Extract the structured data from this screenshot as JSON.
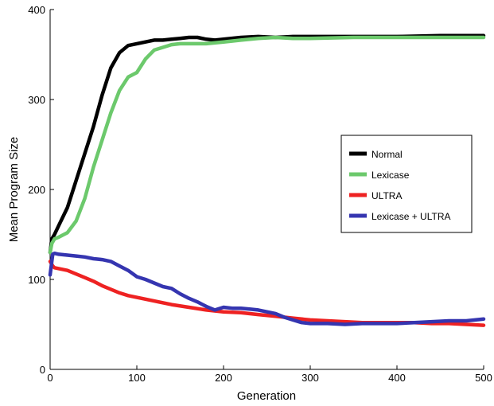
{
  "chart_data": {
    "type": "line",
    "xlabel": "Generation",
    "ylabel": "Mean Program Size",
    "xlim": [
      0,
      500
    ],
    "ylim": [
      0,
      400
    ],
    "xticks": [
      0,
      100,
      200,
      300,
      400,
      500
    ],
    "yticks": [
      0,
      100,
      200,
      300,
      400
    ],
    "grid": false,
    "legend_position": "right-middle",
    "series": [
      {
        "name": "Normal",
        "color": "#000000",
        "x": [
          0,
          2,
          5,
          10,
          20,
          30,
          40,
          50,
          60,
          70,
          80,
          90,
          100,
          110,
          120,
          130,
          140,
          150,
          160,
          170,
          180,
          190,
          200,
          220,
          240,
          260,
          280,
          300,
          350,
          400,
          450,
          500
        ],
        "y": [
          130,
          145,
          150,
          160,
          180,
          210,
          240,
          270,
          305,
          335,
          352,
          360,
          362,
          364,
          366,
          366,
          367,
          368,
          369,
          369,
          367,
          366,
          367,
          369,
          370,
          369,
          370,
          370,
          370,
          370,
          371,
          371
        ]
      },
      {
        "name": "Lexicase",
        "color": "#6cc96c",
        "x": [
          0,
          2,
          5,
          10,
          20,
          30,
          40,
          50,
          60,
          70,
          80,
          90,
          100,
          110,
          120,
          130,
          140,
          150,
          160,
          180,
          200,
          220,
          240,
          260,
          280,
          300,
          350,
          400,
          450,
          500
        ],
        "y": [
          130,
          140,
          145,
          147,
          152,
          165,
          190,
          225,
          255,
          285,
          310,
          325,
          330,
          345,
          355,
          358,
          361,
          362,
          362,
          362,
          364,
          366,
          368,
          369,
          368,
          368,
          369,
          369,
          369,
          369
        ]
      },
      {
        "name": "ULTRA",
        "color": "#ee2222",
        "x": [
          0,
          3,
          5,
          10,
          20,
          30,
          40,
          50,
          60,
          70,
          80,
          90,
          100,
          120,
          140,
          160,
          180,
          200,
          220,
          240,
          260,
          280,
          300,
          320,
          340,
          360,
          380,
          400,
          420,
          440,
          460,
          480,
          500
        ],
        "y": [
          120,
          115,
          113,
          112,
          110,
          106,
          102,
          98,
          93,
          89,
          85,
          82,
          80,
          76,
          72,
          69,
          66,
          64,
          63,
          61,
          59,
          57,
          55,
          54,
          53,
          52,
          52,
          52,
          52,
          51,
          51,
          50,
          49
        ]
      },
      {
        "name": "Lexicase + ULTRA",
        "color": "#3535b0",
        "x": [
          0,
          3,
          5,
          10,
          20,
          30,
          40,
          50,
          60,
          70,
          80,
          90,
          100,
          110,
          120,
          130,
          140,
          150,
          160,
          170,
          180,
          190,
          200,
          210,
          220,
          230,
          240,
          250,
          260,
          270,
          280,
          290,
          300,
          320,
          340,
          360,
          380,
          400,
          420,
          440,
          460,
          480,
          500
        ],
        "y": [
          105,
          128,
          129,
          128,
          127,
          126,
          125,
          123,
          122,
          120,
          115,
          110,
          103,
          100,
          96,
          92,
          90,
          84,
          79,
          75,
          70,
          66,
          69,
          68,
          68,
          67,
          66,
          64,
          62,
          58,
          55,
          52,
          51,
          51,
          50,
          51,
          51,
          51,
          52,
          53,
          54,
          54,
          56
        ]
      }
    ]
  }
}
